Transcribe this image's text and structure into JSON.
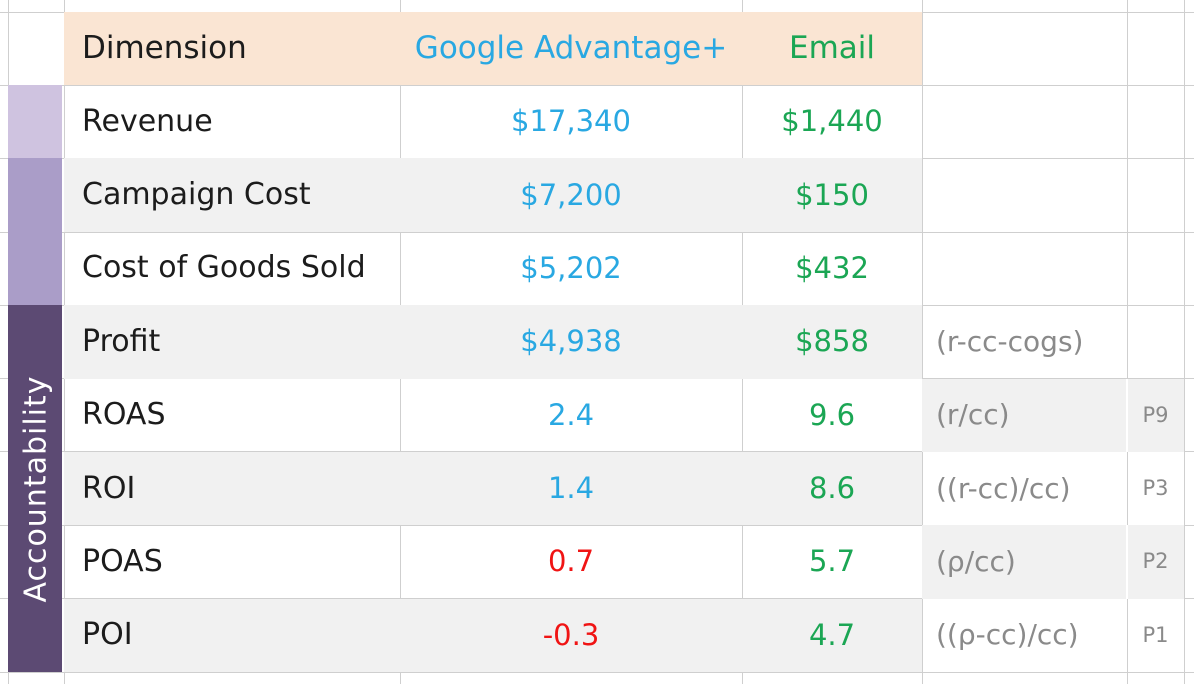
{
  "table": {
    "header": {
      "dimension": "Dimension",
      "campaign_a": "Google Advantage+",
      "campaign_b": "Email"
    },
    "rows": [
      {
        "label": "Revenue",
        "ga": "$17,340",
        "ga_color": "blue",
        "email": "$1,440",
        "formula": "",
        "p": ""
      },
      {
        "label": "Campaign Cost",
        "ga": "$7,200",
        "ga_color": "blue",
        "email": "$150",
        "formula": "",
        "p": ""
      },
      {
        "label": "Cost of Goods Sold",
        "ga": "$5,202",
        "ga_color": "blue",
        "email": "$432",
        "formula": "",
        "p": ""
      },
      {
        "label": "Profit",
        "ga": "$4,938",
        "ga_color": "blue",
        "email": "$858",
        "formula": "(r-cc-cogs)",
        "p": ""
      },
      {
        "label": "ROAS",
        "ga": "2.4",
        "ga_color": "blue",
        "email": "9.6",
        "formula": "(r/cc)",
        "p": "P9"
      },
      {
        "label": "ROI",
        "ga": "1.4",
        "ga_color": "blue",
        "email": "8.6",
        "formula": "((r-cc)/cc)",
        "p": "P3"
      },
      {
        "label": "POAS",
        "ga": "0.7",
        "ga_color": "red",
        "email": "5.7",
        "formula": "(ρ/cc)",
        "p": "P2"
      },
      {
        "label": "POI",
        "ga": "-0.3",
        "ga_color": "red",
        "email": "4.7",
        "formula": "((ρ-cc)/cc)",
        "p": "P1"
      }
    ]
  },
  "sidebar": {
    "label": "Accountability"
  },
  "colors": {
    "blue": "#29a8e2",
    "green": "#1ba654",
    "red": "#f01414",
    "formula_gray": "#8a8a8a",
    "header_bg": "#fae5d3",
    "stripe_gray": "#f1f1f1",
    "bar_light": "#cfc3e0",
    "bar_medium": "#aa9dc8",
    "bar_dark": "#5c4a73"
  }
}
